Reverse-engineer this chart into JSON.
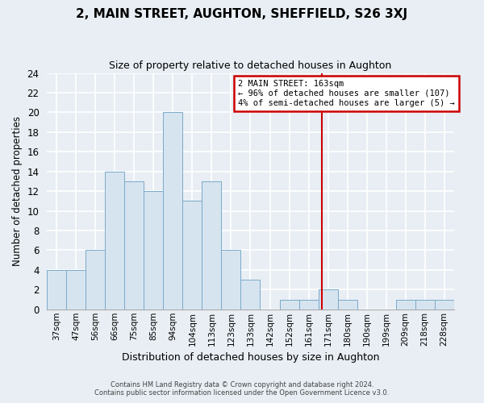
{
  "title": "2, MAIN STREET, AUGHTON, SHEFFIELD, S26 3XJ",
  "subtitle": "Size of property relative to detached houses in Aughton",
  "xlabel": "Distribution of detached houses by size in Aughton",
  "ylabel": "Number of detached properties",
  "bin_labels": [
    "37sqm",
    "47sqm",
    "56sqm",
    "66sqm",
    "75sqm",
    "85sqm",
    "94sqm",
    "104sqm",
    "113sqm",
    "123sqm",
    "133sqm",
    "142sqm",
    "152sqm",
    "161sqm",
    "171sqm",
    "180sqm",
    "190sqm",
    "199sqm",
    "209sqm",
    "218sqm",
    "228sqm"
  ],
  "bar_values": [
    4,
    4,
    6,
    14,
    13,
    12,
    20,
    11,
    13,
    6,
    3,
    0,
    1,
    1,
    2,
    1,
    0,
    0,
    1,
    1,
    1
  ],
  "bar_color": "#d6e4f0",
  "bar_edge_color": "#7aaac8",
  "red_line_x": 13.7,
  "annotation_line1": "2 MAIN STREET: 163sqm",
  "annotation_line2": "← 96% of detached houses are smaller (107)",
  "annotation_line3": "4% of semi-detached houses are larger (5) →",
  "annotation_box_color": "#ffffff",
  "annotation_box_edge": "#cc0000",
  "vline_color": "#cc0000",
  "ylim": [
    0,
    24
  ],
  "yticks": [
    0,
    2,
    4,
    6,
    8,
    10,
    12,
    14,
    16,
    18,
    20,
    22,
    24
  ],
  "footer1": "Contains HM Land Registry data © Crown copyright and database right 2024.",
  "footer2": "Contains public sector information licensed under the Open Government Licence v3.0.",
  "bg_color": "#e8eef4",
  "grid_color": "#ffffff"
}
